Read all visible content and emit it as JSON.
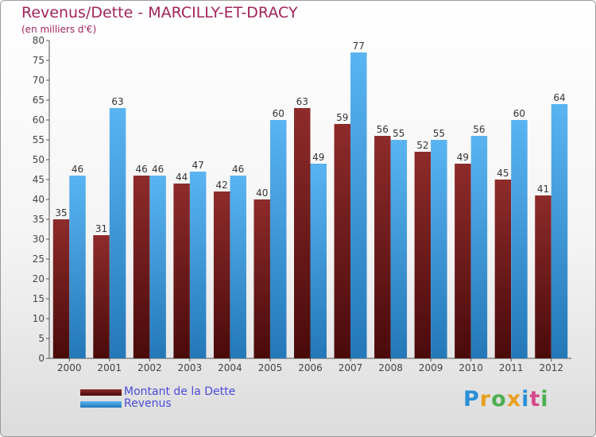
{
  "page": {
    "title": "Revenus/Dette - MARCILLY-ET-DRACY",
    "subtitle": "(en milliers d'€)"
  },
  "legend": {
    "items": [
      {
        "label": "Montant de la Dette",
        "color": "#7a1f1f"
      },
      {
        "label": "Revenus",
        "color": "#4aa8ea"
      }
    ]
  },
  "logo": {
    "text": "Proxiti",
    "letters": [
      {
        "ch": "P",
        "color": "#2a8fd6"
      },
      {
        "ch": "r",
        "color": "#e8a020"
      },
      {
        "ch": "o",
        "color": "#4caf50"
      },
      {
        "ch": "x",
        "color": "#e8a020"
      },
      {
        "ch": "i",
        "color": "#2a8fd6"
      },
      {
        "ch": "t",
        "color": "#d64a8a"
      },
      {
        "ch": "i",
        "color": "#4caf50"
      }
    ]
  },
  "chart_data": {
    "type": "bar",
    "title": "Revenus/Dette - MARCILLY-ET-DRACY",
    "subtitle": "(en milliers d'€)",
    "xlabel": "",
    "ylabel": "",
    "categories": [
      "2000",
      "2001",
      "2002",
      "2003",
      "2004",
      "2005",
      "2006",
      "2007",
      "2008",
      "2009",
      "2010",
      "2011",
      "2012"
    ],
    "series": [
      {
        "name": "Montant de la Dette",
        "color": "#7a1f1f",
        "values": [
          35,
          31,
          46,
          44,
          42,
          40,
          63,
          59,
          56,
          52,
          49,
          45,
          41
        ]
      },
      {
        "name": "Revenus",
        "color": "#4aa8ea",
        "values": [
          46,
          63,
          46,
          47,
          46,
          60,
          49,
          77,
          55,
          55,
          56,
          60,
          64
        ]
      }
    ],
    "ylim": [
      0,
      80
    ],
    "ytick_step": 5,
    "grid": false,
    "legend_position": "bottom-left",
    "data_labels": true
  }
}
